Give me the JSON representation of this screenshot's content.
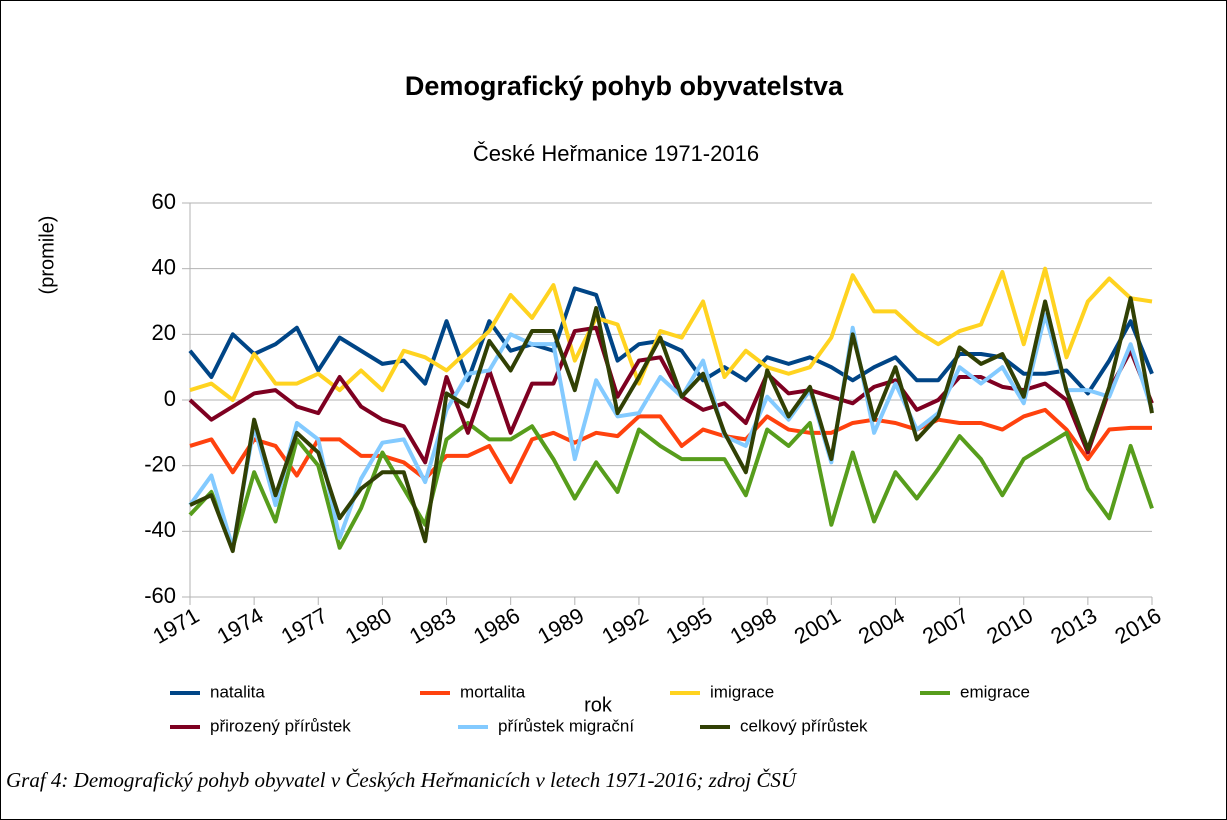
{
  "chart_data": {
    "type": "line",
    "title": "Demografický pohyb obyvatelstva",
    "subtitle": "České Heřmanice 1971-2016",
    "x_label": "rok",
    "y_label": "(promile)",
    "x": [
      1971,
      1972,
      1973,
      1974,
      1975,
      1976,
      1977,
      1978,
      1979,
      1980,
      1981,
      1982,
      1983,
      1984,
      1985,
      1986,
      1987,
      1988,
      1989,
      1990,
      1991,
      1992,
      1993,
      1994,
      1995,
      1996,
      1997,
      1998,
      1999,
      2000,
      2001,
      2002,
      2003,
      2004,
      2005,
      2006,
      2007,
      2008,
      2009,
      2010,
      2011,
      2012,
      2013,
      2014,
      2015,
      2016
    ],
    "xlim": [
      1971,
      2016
    ],
    "xticks": [
      1971,
      1974,
      1977,
      1980,
      1983,
      1986,
      1989,
      1992,
      1995,
      1998,
      2001,
      2004,
      2007,
      2010,
      2013,
      2016
    ],
    "ylim": [
      -60,
      60
    ],
    "yticks": [
      -60,
      -40,
      -20,
      0,
      20,
      40,
      60
    ],
    "grid": true,
    "legend": "bottom",
    "series": [
      {
        "name": "natalita",
        "color": "#004586",
        "values": [
          15,
          7,
          20,
          14,
          17,
          22,
          9,
          19,
          15,
          11,
          12,
          5,
          24,
          6,
          24,
          15,
          17,
          15,
          34,
          32,
          12,
          17,
          18,
          15,
          6,
          10,
          6,
          13,
          11,
          13,
          10,
          6,
          10,
          13,
          6,
          6,
          14,
          14,
          13,
          8,
          8,
          9,
          2,
          12,
          24,
          8
        ]
      },
      {
        "name": "mortalita",
        "color": "#ff420e",
        "values": [
          -14,
          -12,
          -22,
          -12,
          -14,
          -23,
          -12,
          -12,
          -17,
          -17,
          -19,
          -24,
          -17,
          -17,
          -14,
          -25,
          -12,
          -10,
          -13,
          -10,
          -11,
          -5,
          -5,
          -14,
          -9,
          -11,
          -12,
          -5,
          -9,
          -10,
          -10,
          -7,
          -6,
          -7,
          -9,
          -6,
          -7,
          -7,
          -9,
          -5,
          -3,
          -9,
          -18,
          -9,
          -8.5,
          -8.5
        ]
      },
      {
        "name": "imigrace",
        "color": "#ffd320",
        "values": [
          3,
          5,
          0,
          14,
          5,
          5,
          8,
          3,
          9,
          3,
          15,
          13,
          9,
          15,
          21,
          32,
          25,
          35,
          12,
          25,
          23,
          5,
          21,
          19,
          30,
          7,
          15,
          10,
          8,
          10,
          19,
          38,
          27,
          27,
          21,
          17,
          21,
          23,
          39,
          17,
          40,
          13,
          30,
          37,
          31,
          30
        ]
      },
      {
        "name": "emigrace",
        "color": "#579d1c",
        "values": [
          -35,
          -28,
          -45,
          -22,
          -37,
          -12,
          -20,
          -45,
          -33,
          -16,
          -27,
          -38,
          -12,
          -7,
          -12,
          -12,
          -8,
          -18,
          -30,
          -19,
          -28,
          -9,
          -14,
          -18,
          -18,
          -18,
          -29,
          -9,
          -14,
          -7,
          -38,
          -16,
          -37,
          -22,
          -30,
          -21,
          -11,
          -18,
          -29,
          -18,
          -14,
          -10,
          -27,
          -36,
          -14,
          -33
        ]
      },
      {
        "name": "přirozený přírůstek",
        "color": "#7e0021",
        "values": [
          0,
          -6,
          -2,
          2,
          3,
          -2,
          -4,
          7,
          -2,
          -6,
          -8,
          -19,
          7,
          -10,
          9,
          -10,
          5,
          5,
          21,
          22,
          1,
          12,
          13,
          1,
          -3,
          -1,
          -7,
          8,
          2,
          3,
          1,
          -1,
          4,
          6,
          -3,
          0,
          7,
          7,
          4,
          3,
          5,
          0,
          -16,
          3,
          15,
          -1
        ]
      },
      {
        "name": "přírůstek migrační",
        "color": "#83caff",
        "values": [
          -32,
          -23,
          -45,
          -8,
          -32,
          -7,
          -12,
          -42,
          -24,
          -13,
          -12,
          -25,
          -3,
          8,
          9,
          20,
          17,
          17,
          -18,
          6,
          -5,
          -4,
          7,
          1,
          12,
          -11,
          -14,
          1,
          -6,
          3,
          -19,
          22,
          -10,
          5,
          -9,
          -4,
          10,
          5,
          10,
          -1,
          26,
          3,
          3,
          1,
          17,
          -3
        ]
      },
      {
        "name": "celkový přírůstek",
        "color": "#314004",
        "values": [
          -32,
          -29,
          -46,
          -6,
          -29,
          -10,
          -16,
          -36,
          -27,
          -22,
          -22,
          -43,
          2,
          -2,
          18,
          9,
          21,
          21,
          3,
          28,
          -4,
          7,
          19,
          1,
          8,
          -10,
          -22,
          9,
          -5,
          4,
          -18,
          20,
          -6,
          10,
          -12,
          -5,
          16,
          11,
          14,
          1,
          30,
          3,
          -15,
          4,
          31,
          -4
        ]
      }
    ]
  },
  "caption": "Graf 4: Demografický pohyb obyvatel v Českých Heřmanicích v letech 1971-2016; zdroj ČSÚ"
}
